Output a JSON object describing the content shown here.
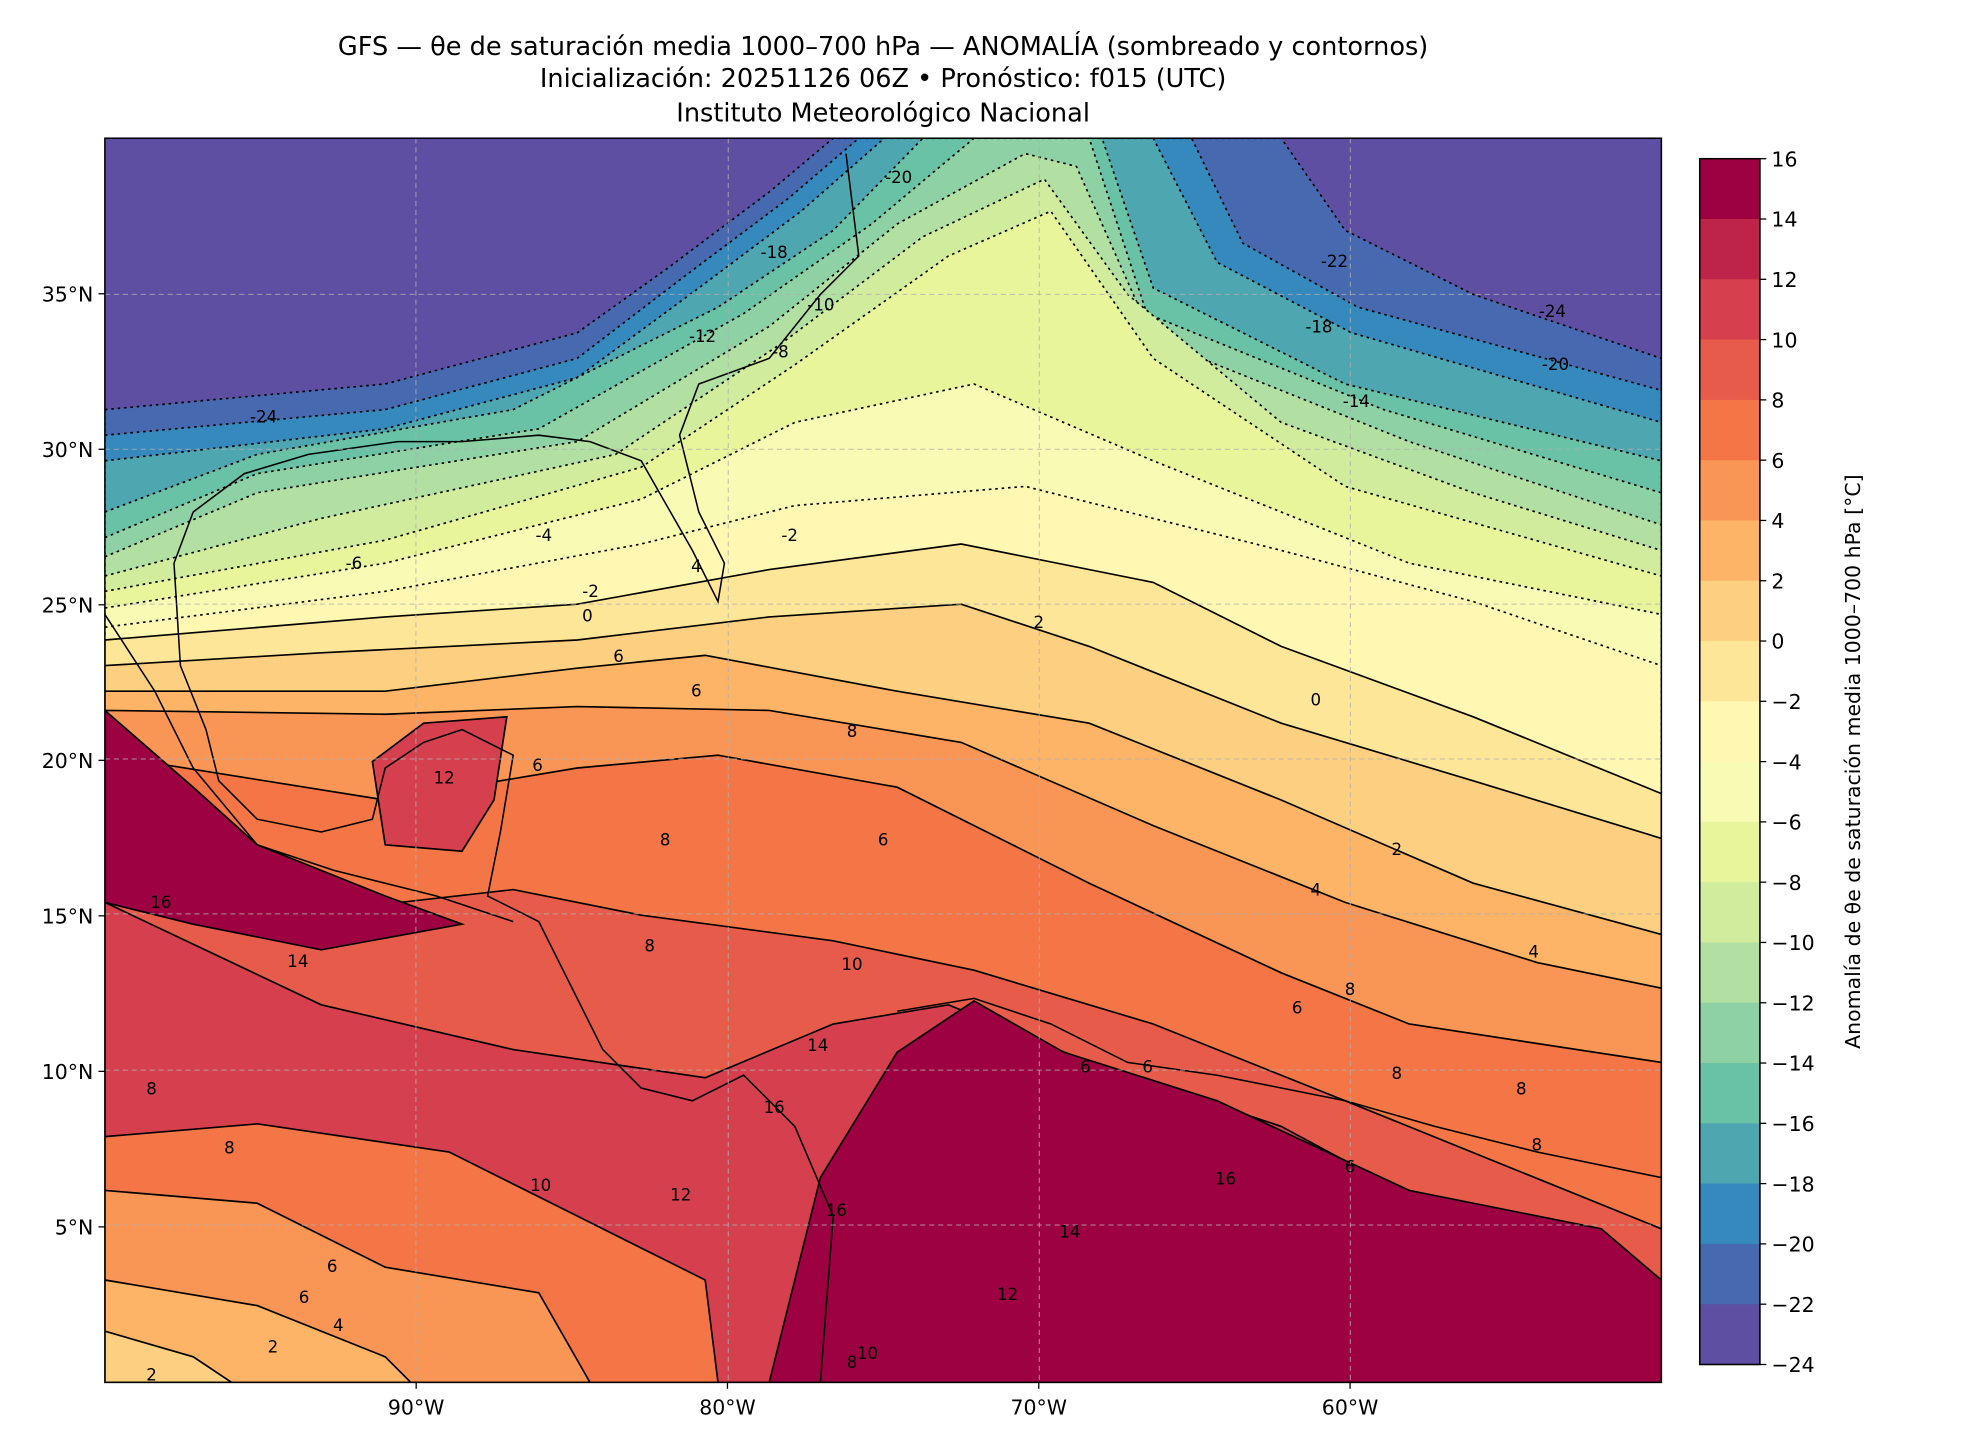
{
  "title": {
    "line1": "GFS — θe de saturación media 1000–700 hPa — ANOMALÍA (sombreado y contornos)",
    "line2": "Inicialización: 20251126 06Z   •   Pronóstico: f015 (UTC)",
    "line3": "Instituto Meteorológico Nacional"
  },
  "chart_data": {
    "type": "heatmap",
    "subtype": "filled contour map",
    "title": "GFS — θe de saturación media 1000–700 hPa — ANOMALÍA (sombreado y contornos)",
    "lon_range": [
      -100,
      -50
    ],
    "lat_range": [
      0,
      40
    ],
    "x_ticks": [
      {
        "lon": -90,
        "label": "90°W"
      },
      {
        "lon": -80,
        "label": "80°W"
      },
      {
        "lon": -70,
        "label": "70°W"
      },
      {
        "lon": -60,
        "label": "60°W"
      }
    ],
    "y_ticks": [
      {
        "lat": 35,
        "label": "35°N"
      },
      {
        "lat": 30,
        "label": "30°N"
      },
      {
        "lat": 25,
        "label": "25°N"
      },
      {
        "lat": 20,
        "label": "20°N"
      },
      {
        "lat": 15,
        "label": "15°N"
      },
      {
        "lat": 10,
        "label": "10°N"
      },
      {
        "lat": 5,
        "label": "5°N"
      }
    ],
    "grid": true,
    "colorbar": {
      "label": "Anomalía de θe de saturación media 1000–700 hPa [°C]",
      "range": [
        -24,
        16
      ],
      "ticks": [
        "16",
        "14",
        "12",
        "10",
        "8",
        "6",
        "4",
        "2",
        "0",
        "−2",
        "−4",
        "−6",
        "−8",
        "−10",
        "−12",
        "−14",
        "−16",
        "−18",
        "−20",
        "−22",
        "−24"
      ],
      "colors": [
        "#9e0142",
        "#be2449",
        "#d6404e",
        "#e75b4a",
        "#f47646",
        "#f99656",
        "#fdb466",
        "#fdcf80",
        "#fee699",
        "#fff7b2",
        "#f7fbb3",
        "#e8f59b",
        "#d1ec9c",
        "#b2e0a2",
        "#8dd1a4",
        "#69c2a5",
        "#4ea6b0",
        "#3589bd",
        "#4669b0",
        "#5e4fa2"
      ]
    },
    "contour_labels": [
      {
        "value": "-24",
        "lon": -94.9,
        "lat": 31.0
      },
      {
        "value": "-22",
        "lon": -60.5,
        "lat": 36.0
      },
      {
        "value": "-24",
        "lon": -53.5,
        "lat": 34.4
      },
      {
        "value": "-18",
        "lon": -78.5,
        "lat": 36.3
      },
      {
        "value": "-20",
        "lon": -74.5,
        "lat": 38.7
      },
      {
        "value": "-12",
        "lon": -80.8,
        "lat": 33.6
      },
      {
        "value": "-10",
        "lon": -77.0,
        "lat": 34.6
      },
      {
        "value": "-8",
        "lon": -78.3,
        "lat": 33.1
      },
      {
        "value": "-18",
        "lon": -61.0,
        "lat": 33.9
      },
      {
        "value": "-20",
        "lon": -53.4,
        "lat": 32.7
      },
      {
        "value": "-14",
        "lon": -59.8,
        "lat": 31.5
      },
      {
        "value": "-6",
        "lon": -92.0,
        "lat": 26.3
      },
      {
        "value": "-4",
        "lon": -85.9,
        "lat": 27.2
      },
      {
        "value": "-2",
        "lon": -78.0,
        "lat": 27.2
      },
      {
        "value": "4",
        "lon": -81.0,
        "lat": 26.2
      },
      {
        "value": "-2",
        "lon": -84.4,
        "lat": 25.4
      },
      {
        "value": "0",
        "lon": -84.5,
        "lat": 24.6
      },
      {
        "value": "2",
        "lon": -70.0,
        "lat": 24.4
      },
      {
        "value": "0",
        "lon": -61.1,
        "lat": 21.9
      },
      {
        "value": "6",
        "lon": -83.5,
        "lat": 23.3
      },
      {
        "value": "6",
        "lon": -81.0,
        "lat": 22.2
      },
      {
        "value": "8",
        "lon": -76.0,
        "lat": 20.9
      },
      {
        "value": "6",
        "lon": -86.1,
        "lat": 19.8
      },
      {
        "value": "12",
        "lon": -89.1,
        "lat": 19.4
      },
      {
        "value": "8",
        "lon": -82.0,
        "lat": 17.4
      },
      {
        "value": "6",
        "lon": -75.0,
        "lat": 17.4
      },
      {
        "value": "2",
        "lon": -58.5,
        "lat": 17.1
      },
      {
        "value": "4",
        "lon": -61.1,
        "lat": 15.8
      },
      {
        "value": "16",
        "lon": -98.2,
        "lat": 15.4
      },
      {
        "value": "14",
        "lon": -93.8,
        "lat": 13.5
      },
      {
        "value": "8",
        "lon": -82.5,
        "lat": 14.0
      },
      {
        "value": "10",
        "lon": -76.0,
        "lat": 13.4
      },
      {
        "value": "4",
        "lon": -54.1,
        "lat": 13.8
      },
      {
        "value": "6",
        "lon": -61.7,
        "lat": 12.0
      },
      {
        "value": "8",
        "lon": -60.0,
        "lat": 12.6
      },
      {
        "value": "14",
        "lon": -77.1,
        "lat": 10.8
      },
      {
        "value": "6",
        "lon": -68.5,
        "lat": 10.1
      },
      {
        "value": "6",
        "lon": -66.5,
        "lat": 10.1
      },
      {
        "value": "8",
        "lon": -58.5,
        "lat": 9.9
      },
      {
        "value": "8",
        "lon": -54.5,
        "lat": 9.4
      },
      {
        "value": "8",
        "lon": -98.5,
        "lat": 9.4
      },
      {
        "value": "8",
        "lon": -96.0,
        "lat": 7.5
      },
      {
        "value": "16",
        "lon": -78.5,
        "lat": 8.8
      },
      {
        "value": "8",
        "lon": -54.0,
        "lat": 7.6
      },
      {
        "value": "10",
        "lon": -86.0,
        "lat": 6.3
      },
      {
        "value": "12",
        "lon": -81.5,
        "lat": 6.0
      },
      {
        "value": "16",
        "lon": -76.5,
        "lat": 5.5
      },
      {
        "value": "6",
        "lon": -60.0,
        "lat": 6.9
      },
      {
        "value": "16",
        "lon": -64.0,
        "lat": 6.5
      },
      {
        "value": "6",
        "lon": -92.7,
        "lat": 3.7
      },
      {
        "value": "6",
        "lon": -93.6,
        "lat": 2.7
      },
      {
        "value": "14",
        "lon": -69.0,
        "lat": 4.8
      },
      {
        "value": "4",
        "lon": -92.5,
        "lat": 1.8
      },
      {
        "value": "12",
        "lon": -71.0,
        "lat": 2.8
      },
      {
        "value": "2",
        "lon": -94.6,
        "lat": 1.1
      },
      {
        "value": "10",
        "lon": -75.5,
        "lat": 0.9
      },
      {
        "value": "8",
        "lon": -76.0,
        "lat": 0.6
      },
      {
        "value": "2",
        "lon": -98.5,
        "lat": 0.2
      }
    ]
  }
}
